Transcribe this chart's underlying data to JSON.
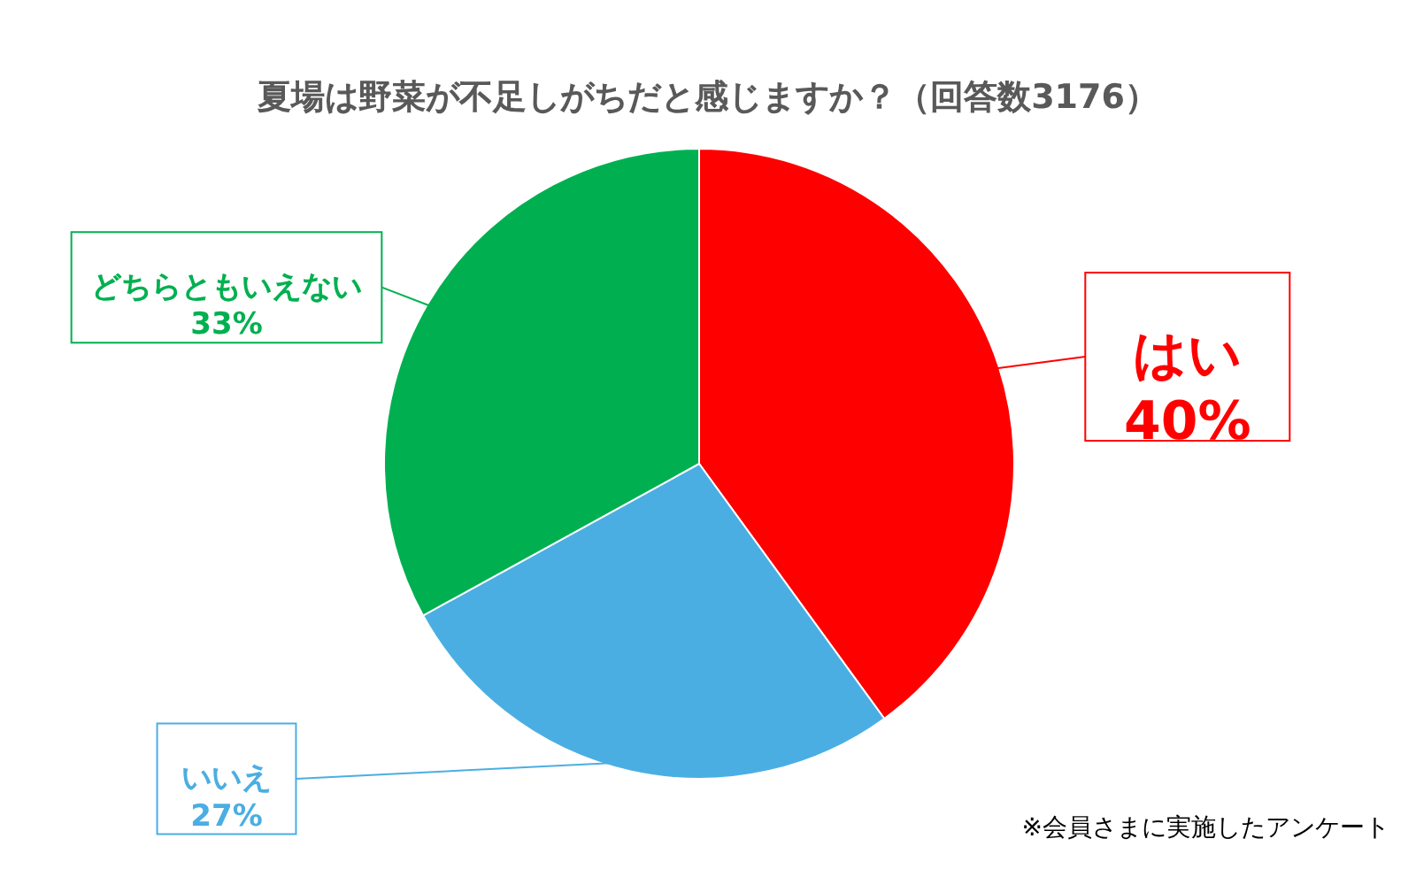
{
  "chart_data": {
    "type": "pie",
    "title": "夏場は野菜が不足しがちだと感じますか？（回答数3176）",
    "categories": [
      "はい",
      "いいえ",
      "どちらともいえない"
    ],
    "values": [
      40,
      27,
      33
    ],
    "value_labels": [
      "40%",
      "27%",
      "33%"
    ],
    "colors": [
      "#ff0000",
      "#4baee3",
      "#00b050"
    ],
    "annotations": [
      "※会員さまに実施したアンケート"
    ]
  }
}
